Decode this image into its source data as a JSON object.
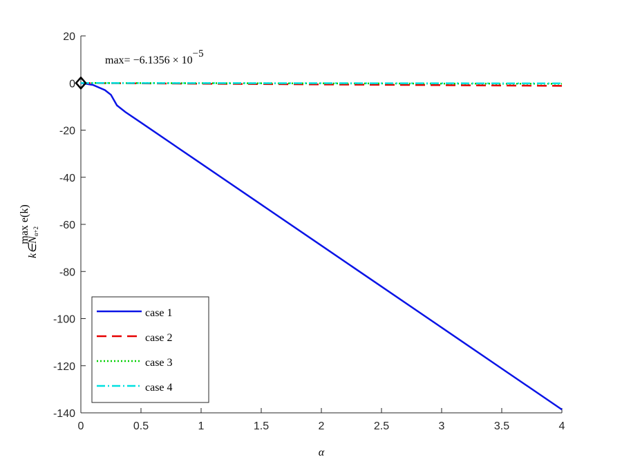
{
  "chart_data": {
    "type": "line",
    "xlabel": "α",
    "ylabel": {
      "main": "max  e(k)",
      "sub": "k∈N",
      "subsub": "α+2"
    },
    "annotation": {
      "text": "max= −6.1356 × 10",
      "exponent": "−5"
    },
    "x": [
      0,
      0.1,
      0.2,
      0.25,
      0.3,
      0.37,
      0.5,
      1,
      1.5,
      2,
      2.5,
      3,
      3.5,
      4
    ],
    "series": [
      {
        "name": "case 1",
        "color": "#0a14e6",
        "dash": "solid",
        "values": [
          0,
          -0.8,
          -3,
          -5,
          -9.5,
          -12.3,
          -16.8,
          -34.2,
          -51.6,
          -69,
          -86.4,
          -103.8,
          -121.2,
          -138.6
        ]
      },
      {
        "name": "case 2",
        "color": "#e60000",
        "dash": "dashed",
        "values": [
          0,
          -0.03,
          -0.06,
          -0.08,
          -0.09,
          -0.11,
          -0.15,
          -0.3,
          -0.45,
          -0.6,
          -0.75,
          -0.9,
          -1.05,
          -1.2
        ]
      },
      {
        "name": "case 3",
        "color": "#00d000",
        "dash": "dotted",
        "values": [
          0,
          -0.01,
          -0.02,
          -0.02,
          -0.03,
          -0.03,
          -0.04,
          -0.08,
          -0.12,
          -0.16,
          -0.2,
          -0.24,
          -0.28,
          -0.32
        ]
      },
      {
        "name": "case 4",
        "color": "#00e0e0",
        "dash": "dashdot",
        "values": [
          0,
          -0.01,
          -0.01,
          -0.01,
          -0.02,
          -0.02,
          -0.02,
          -0.04,
          -0.06,
          -0.08,
          -0.1,
          -0.12,
          -0.14,
          -0.16
        ]
      }
    ],
    "marker_point": {
      "x": 0,
      "y": 0,
      "color": "#000000"
    },
    "xlim": [
      0,
      4
    ],
    "xticks": [
      0,
      0.5,
      1,
      1.5,
      2,
      2.5,
      3,
      3.5,
      4
    ],
    "ylim": [
      -140,
      20
    ],
    "yticks": [
      -140,
      -120,
      -100,
      -80,
      -60,
      -40,
      -20,
      0,
      20
    ],
    "legend": "lower left"
  }
}
